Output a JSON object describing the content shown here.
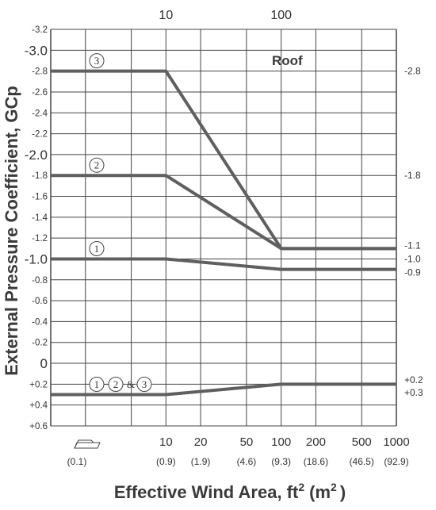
{
  "chart_data": {
    "type": "line",
    "title": "Roof",
    "xlabel": "Effective Wind Area, ft",
    "xlabel_sup1": "2",
    "xlabel_paren": "(m",
    "xlabel_sup2": "2",
    "xlabel_close": ")",
    "ylabel": "External Pressure Coefficient, GCp",
    "x_scale": "log",
    "xlim": [
      1,
      1000
    ],
    "ylim": [
      -3.2,
      0.6
    ],
    "y_inverted": true,
    "grid": true,
    "top_ticks": [
      "10",
      "100"
    ],
    "x_ticks": [
      {
        "label": "10",
        "metric": "(0.9)",
        "value": 10
      },
      {
        "label": "20",
        "metric": "(1.9)",
        "value": 20
      },
      {
        "label": "50",
        "metric": "(4.6)",
        "value": 50
      },
      {
        "label": "100",
        "metric": "(9.3)",
        "value": 100
      },
      {
        "label": "200",
        "metric": "(18.6)",
        "value": 200
      },
      {
        "label": "500",
        "metric": "(46.5)",
        "value": 500
      },
      {
        "label": "1000",
        "metric": "(92.9)",
        "value": 1000
      }
    ],
    "x_origin_metric": "(0.1)",
    "y_ticks": [
      {
        "label": "-3.2",
        "value": -3.2,
        "big": false
      },
      {
        "label": "-3.0",
        "value": -3.0,
        "big": true
      },
      {
        "label": "-2.8",
        "value": -2.8,
        "big": false
      },
      {
        "label": "-2.6",
        "value": -2.6,
        "big": false
      },
      {
        "label": "-2.4",
        "value": -2.4,
        "big": false
      },
      {
        "label": "-2.2",
        "value": -2.2,
        "big": false
      },
      {
        "label": "-2.0",
        "value": -2.0,
        "big": true
      },
      {
        "label": "-1.8",
        "value": -1.8,
        "big": false
      },
      {
        "label": "-1.6",
        "value": -1.6,
        "big": false
      },
      {
        "label": "-1.4",
        "value": -1.4,
        "big": false
      },
      {
        "label": "-1.2",
        "value": -1.2,
        "big": false
      },
      {
        "label": "-1.0",
        "value": -1.0,
        "big": true
      },
      {
        "label": "-0.8",
        "value": -0.8,
        "big": false
      },
      {
        "label": "-0.6",
        "value": -0.6,
        "big": false
      },
      {
        "label": "-0.4",
        "value": -0.4,
        "big": false
      },
      {
        "label": "-0.2",
        "value": -0.2,
        "big": false
      },
      {
        "label": "0",
        "value": 0,
        "big": true
      },
      {
        "label": "+0.2",
        "value": 0.2,
        "big": false
      },
      {
        "label": "+0.4",
        "value": 0.4,
        "big": false
      },
      {
        "label": "+0.6",
        "value": 0.6,
        "big": false
      }
    ],
    "right_labels": [
      {
        "text": "-2.8",
        "value": -2.8
      },
      {
        "text": "-1.8",
        "value": -1.8
      },
      {
        "text": "-1.1",
        "value": -1.13
      },
      {
        "text": "-1.0",
        "value": -1.0
      },
      {
        "text": "-0.9",
        "value": -0.87
      },
      {
        "text": "+0.2",
        "value": 0.16
      },
      {
        "text": "+0.3",
        "value": 0.28
      }
    ],
    "series": [
      {
        "zones": [
          "3"
        ],
        "x": [
          1,
          10,
          100,
          1000
        ],
        "y": [
          -2.8,
          -2.8,
          -1.1,
          -1.1
        ]
      },
      {
        "zones": [
          "2"
        ],
        "x": [
          1,
          10,
          100,
          1000
        ],
        "y": [
          -1.8,
          -1.8,
          -1.1,
          -1.1
        ]
      },
      {
        "zones": [
          "1"
        ],
        "x": [
          1,
          10,
          100,
          1000
        ],
        "y": [
          -1.0,
          -1.0,
          -0.9,
          -0.9
        ]
      },
      {
        "zones": [
          "1",
          "2",
          "3"
        ],
        "joiner": "&",
        "x": [
          1,
          10,
          100,
          1000
        ],
        "y": [
          0.3,
          0.3,
          0.2,
          0.2
        ]
      }
    ],
    "line_color": "#5f5f5f",
    "grid_color": "#444444"
  }
}
